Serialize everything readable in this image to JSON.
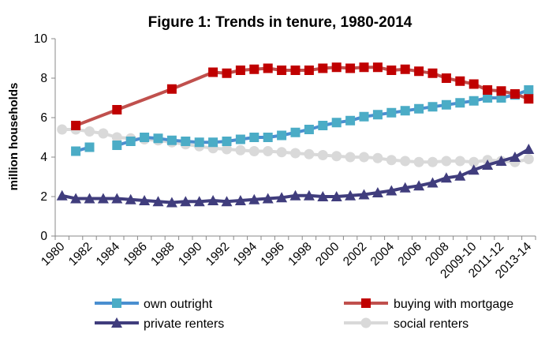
{
  "chart_data": {
    "type": "line",
    "title": "Figure 1: Trends in tenure, 1980-2014",
    "xlabel": "",
    "ylabel": "million households",
    "ylim": [
      0,
      10
    ],
    "yticks": [
      "0",
      "2",
      "4",
      "6",
      "8",
      "10"
    ],
    "x_tick_labels": [
      "1980",
      "1982",
      "1984",
      "1986",
      "1988",
      "1990",
      "1992",
      "1994",
      "1996",
      "1998",
      "2000",
      "2002",
      "2004",
      "2006",
      "2008",
      "2009-10",
      "2011-12",
      "2013-14"
    ],
    "periods": [
      "1980",
      "1981",
      "1982",
      "1983",
      "1984",
      "1985",
      "1986",
      "1987",
      "1988",
      "1989",
      "1990",
      "1991",
      "1992",
      "1993",
      "1994",
      "1995",
      "1996",
      "1997",
      "1998",
      "1999",
      "2000",
      "2001",
      "2002",
      "2003",
      "2004",
      "2005",
      "2006",
      "2007",
      "2008",
      "2008-09",
      "2009-10",
      "2010-11",
      "2011-12",
      "2012-13",
      "2013-14"
    ],
    "series": [
      {
        "name": "own outright",
        "color": "#4bacc6",
        "line_color": "#4a8fd0",
        "marker": "square",
        "values": [
          null,
          4.3,
          4.5,
          null,
          4.6,
          4.8,
          5.0,
          4.95,
          4.85,
          4.8,
          4.75,
          4.75,
          4.8,
          4.9,
          5.0,
          5.0,
          5.1,
          5.25,
          5.4,
          5.6,
          5.75,
          5.85,
          6.05,
          6.15,
          6.25,
          6.35,
          6.45,
          6.55,
          6.65,
          6.75,
          6.85,
          7.0,
          7.0,
          7.15,
          7.4
        ]
      },
      {
        "name": "buying with mortgage",
        "color": "#c00000",
        "line_color": "#c0504d",
        "marker": "square",
        "values": [
          null,
          5.6,
          null,
          null,
          6.4,
          null,
          null,
          null,
          7.45,
          null,
          null,
          8.3,
          8.25,
          8.4,
          8.45,
          8.5,
          8.4,
          8.4,
          8.4,
          8.5,
          8.55,
          8.5,
          8.55,
          8.55,
          8.4,
          8.45,
          8.35,
          8.25,
          8.0,
          7.85,
          7.7,
          7.4,
          7.35,
          7.2,
          6.95
        ]
      },
      {
        "name": "private renters",
        "color": "#403d7d",
        "line_color": "#403d7d",
        "marker": "triangle",
        "values": [
          2.05,
          1.9,
          1.9,
          1.9,
          1.9,
          1.85,
          1.8,
          1.75,
          1.7,
          1.75,
          1.75,
          1.8,
          1.75,
          1.8,
          1.85,
          1.9,
          1.95,
          2.05,
          2.05,
          2.0,
          2.0,
          2.05,
          2.1,
          2.2,
          2.3,
          2.45,
          2.55,
          2.7,
          2.95,
          3.05,
          3.35,
          3.6,
          3.8,
          4.0,
          4.4
        ]
      },
      {
        "name": "social renters",
        "color": "#d9d9d9",
        "line_color": "#d9d9d9",
        "marker": "circle",
        "values": [
          5.4,
          5.4,
          5.3,
          5.2,
          5.0,
          4.95,
          4.9,
          4.85,
          4.75,
          4.65,
          4.55,
          4.45,
          4.4,
          4.35,
          4.3,
          4.3,
          4.25,
          4.2,
          4.15,
          4.1,
          4.05,
          4.0,
          4.0,
          3.95,
          3.85,
          3.8,
          3.75,
          3.75,
          3.8,
          3.8,
          3.75,
          3.85,
          3.8,
          3.75,
          3.9
        ]
      }
    ],
    "legend": {
      "position": "bottom",
      "entries": [
        "own outright",
        "buying with mortgage",
        "private renters",
        "social renters"
      ]
    }
  }
}
